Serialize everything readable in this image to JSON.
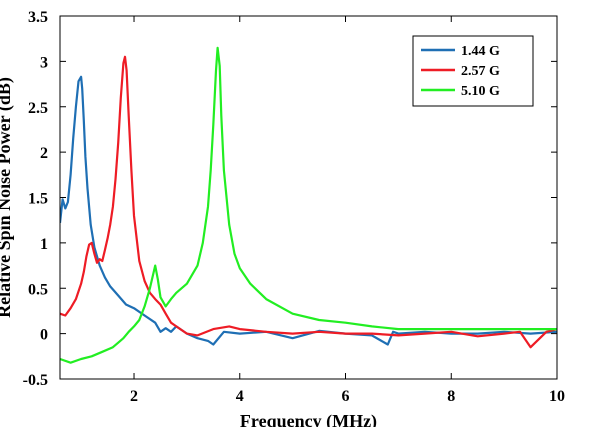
{
  "chart_data": {
    "type": "line",
    "title": "",
    "xlabel": "Frequency (MHz)",
    "ylabel": "Relative Spin Noise Power (dB)",
    "xlim": [
      0.6,
      10
    ],
    "ylim": [
      -0.5,
      3.5
    ],
    "xticks": [
      2,
      4,
      6,
      8,
      10
    ],
    "xtick_labels": [
      "2",
      "4",
      "6",
      "8",
      "10"
    ],
    "yticks": [
      -0.5,
      0,
      0.5,
      1,
      1.5,
      2,
      2.5,
      3,
      3.5
    ],
    "ytick_labels": [
      "-0.5",
      "0",
      "0.5",
      "1",
      "1.5",
      "2",
      "2.5",
      "3",
      "3.5"
    ],
    "grid": false,
    "legend_position": "top-right",
    "series": [
      {
        "name": "1.44 G",
        "color": "#1f6fb4",
        "x": [
          0.6,
          0.65,
          0.7,
          0.75,
          0.8,
          0.85,
          0.9,
          0.95,
          1.0,
          1.02,
          1.05,
          1.08,
          1.12,
          1.18,
          1.25,
          1.35,
          1.45,
          1.55,
          1.7,
          1.85,
          2.0,
          2.2,
          2.4,
          2.5,
          2.6,
          2.7,
          2.8,
          3.0,
          3.2,
          3.4,
          3.5,
          3.7,
          4.0,
          4.5,
          5.0,
          5.5,
          6.0,
          6.5,
          6.8,
          6.9,
          7.0,
          7.5,
          8.0,
          8.5,
          9.0,
          9.5,
          10.0
        ],
        "y": [
          1.22,
          1.48,
          1.38,
          1.45,
          1.75,
          2.15,
          2.5,
          2.78,
          2.83,
          2.7,
          2.35,
          1.95,
          1.6,
          1.2,
          0.95,
          0.75,
          0.62,
          0.52,
          0.42,
          0.32,
          0.28,
          0.2,
          0.12,
          0.02,
          0.06,
          0.02,
          0.08,
          0.0,
          -0.05,
          -0.08,
          -0.12,
          0.02,
          0.0,
          0.02,
          -0.05,
          0.03,
          0.0,
          -0.02,
          -0.12,
          0.02,
          0.0,
          0.02,
          0.0,
          0.0,
          0.02,
          0.0,
          0.02
        ]
      },
      {
        "name": "2.57 G",
        "color": "#ee1c25",
        "x": [
          0.6,
          0.7,
          0.8,
          0.9,
          1.0,
          1.05,
          1.1,
          1.15,
          1.2,
          1.25,
          1.3,
          1.35,
          1.4,
          1.45,
          1.5,
          1.55,
          1.6,
          1.65,
          1.7,
          1.75,
          1.8,
          1.83,
          1.86,
          1.9,
          1.95,
          2.0,
          2.1,
          2.2,
          2.3,
          2.4,
          2.5,
          2.6,
          2.7,
          2.8,
          3.0,
          3.2,
          3.5,
          3.8,
          4.0,
          4.5,
          5.0,
          5.5,
          6.0,
          6.5,
          7.0,
          7.5,
          8.0,
          8.5,
          9.0,
          9.3,
          9.5,
          9.8,
          10.0
        ],
        "y": [
          0.22,
          0.2,
          0.28,
          0.38,
          0.55,
          0.68,
          0.85,
          0.98,
          1.0,
          0.88,
          0.78,
          0.82,
          0.8,
          0.92,
          1.05,
          1.2,
          1.4,
          1.7,
          2.1,
          2.6,
          2.98,
          3.05,
          2.9,
          2.4,
          1.8,
          1.3,
          0.8,
          0.58,
          0.45,
          0.38,
          0.32,
          0.22,
          0.12,
          0.08,
          0.0,
          -0.02,
          0.05,
          0.08,
          0.05,
          0.02,
          0.0,
          0.02,
          0.0,
          0.0,
          -0.02,
          0.0,
          0.02,
          -0.03,
          0.0,
          0.02,
          -0.15,
          0.02,
          0.05
        ]
      },
      {
        "name": "5.10 G",
        "color": "#22ee22",
        "x": [
          0.6,
          0.8,
          1.0,
          1.2,
          1.4,
          1.6,
          1.7,
          1.8,
          1.9,
          2.0,
          2.1,
          2.2,
          2.3,
          2.4,
          2.45,
          2.5,
          2.6,
          2.7,
          2.8,
          3.0,
          3.2,
          3.3,
          3.4,
          3.45,
          3.5,
          3.55,
          3.58,
          3.62,
          3.65,
          3.7,
          3.8,
          3.9,
          4.0,
          4.2,
          4.5,
          5.0,
          5.5,
          6.0,
          6.5,
          7.0,
          7.5,
          8.0,
          8.5,
          9.0,
          9.5,
          10.0
        ],
        "y": [
          -0.28,
          -0.32,
          -0.28,
          -0.25,
          -0.2,
          -0.15,
          -0.1,
          -0.05,
          0.02,
          0.08,
          0.15,
          0.3,
          0.5,
          0.75,
          0.6,
          0.4,
          0.3,
          0.38,
          0.45,
          0.55,
          0.75,
          1.0,
          1.4,
          1.8,
          2.3,
          2.9,
          3.15,
          2.95,
          2.4,
          1.8,
          1.2,
          0.88,
          0.72,
          0.55,
          0.38,
          0.22,
          0.15,
          0.12,
          0.08,
          0.05,
          0.05,
          0.05,
          0.05,
          0.05,
          0.05,
          0.05
        ]
      }
    ]
  }
}
